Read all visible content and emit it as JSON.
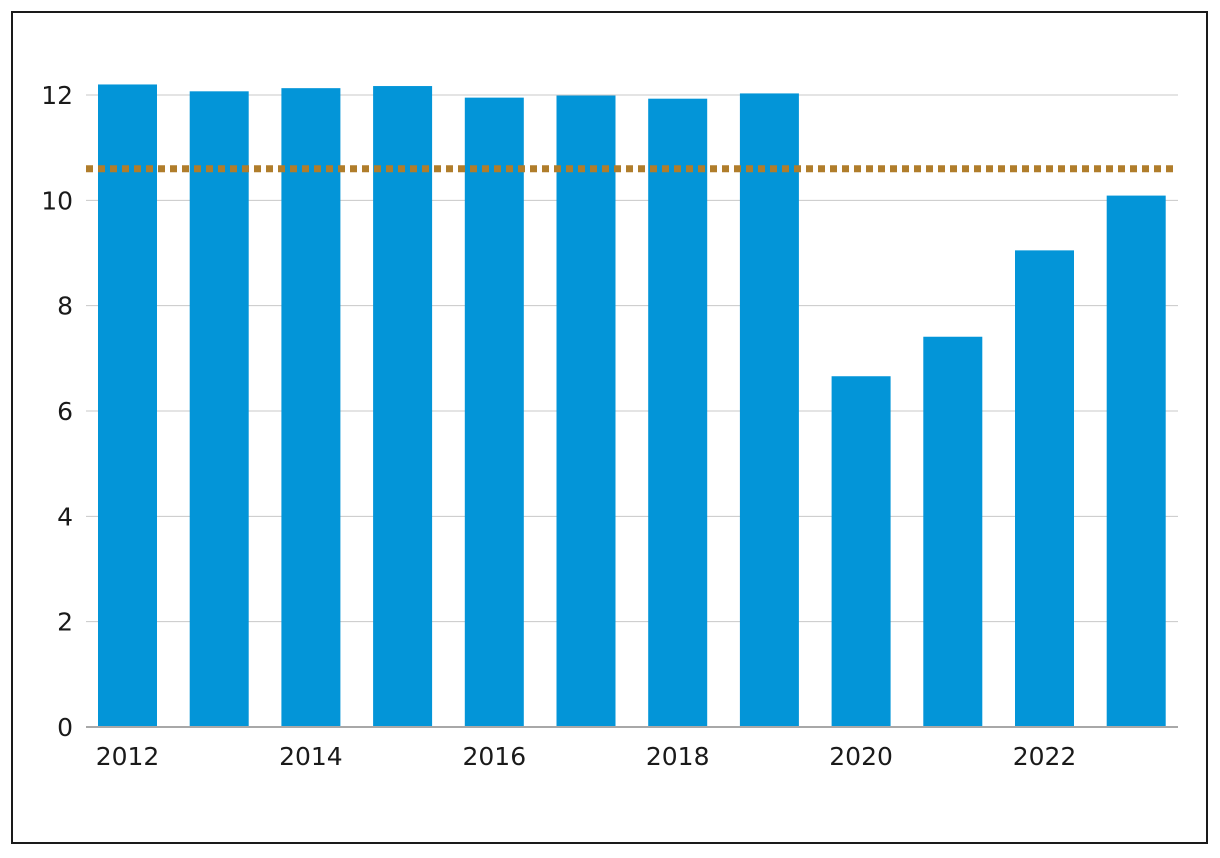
{
  "chart_data": {
    "type": "bar",
    "x": [
      2012,
      2013,
      2014,
      2015,
      2016,
      2017,
      2018,
      2019,
      2020,
      2021,
      2022,
      2023
    ],
    "values": [
      12.2,
      12.07,
      12.13,
      12.17,
      11.95,
      11.99,
      11.93,
      12.03,
      6.66,
      7.41,
      9.05,
      10.09
    ],
    "reference_line": {
      "value": 10.6,
      "style": "dotted"
    },
    "xtick_labels": [
      "2012",
      "2014",
      "2016",
      "2018",
      "2020",
      "2022"
    ],
    "yticks": [
      0,
      2,
      4,
      6,
      8,
      10,
      12
    ],
    "ylim": [
      0,
      12.6
    ],
    "title": "",
    "xlabel": "",
    "ylabel": "",
    "grid": true,
    "legend": "none",
    "colors": {
      "bar": "#0395d8",
      "reference_line": "#b07d2b",
      "grid": "#c8c8c8",
      "axis": "#a8a8a8"
    }
  }
}
